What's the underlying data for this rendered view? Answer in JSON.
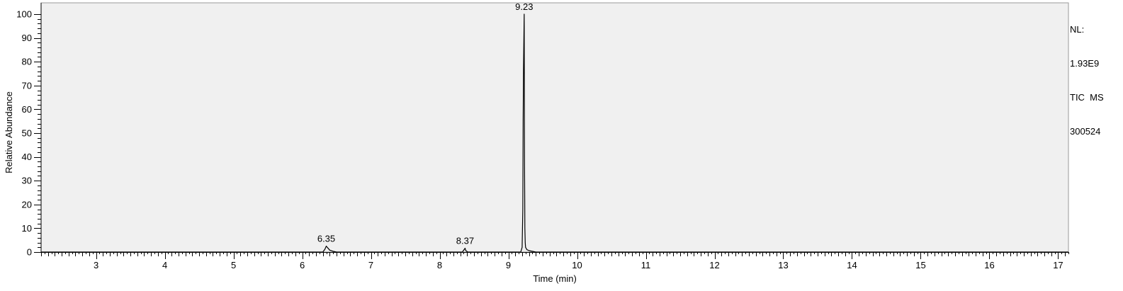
{
  "chart_data": {
    "type": "line",
    "xlabel": "Time (min)",
    "ylabel": "Relative Abundance",
    "xlim": [
      2.2,
      17.15
    ],
    "ylim": [
      0,
      100
    ],
    "x_ticks": [
      3,
      4,
      5,
      6,
      7,
      8,
      9,
      10,
      11,
      12,
      13,
      14,
      15,
      16,
      17
    ],
    "y_ticks": [
      0,
      10,
      20,
      30,
      40,
      50,
      60,
      70,
      80,
      90,
      100
    ],
    "grid": false,
    "plot_background": "#f0f0f0",
    "line_color": "#000000",
    "peaks": [
      {
        "x": 6.35,
        "y": 2.5,
        "label": "6.35"
      },
      {
        "x": 8.37,
        "y": 1.6,
        "label": "8.37"
      },
      {
        "x": 9.23,
        "y": 100,
        "label": "9.23"
      }
    ],
    "series": [
      {
        "x": [
          2.2,
          6.3,
          6.33,
          6.35,
          6.37,
          6.4,
          6.45,
          6.5,
          8.33,
          8.36,
          8.37,
          8.38,
          8.41,
          9.18,
          9.2,
          9.21,
          9.215,
          9.22,
          9.23,
          9.235,
          9.24,
          9.245,
          9.25,
          9.27,
          9.3,
          9.35,
          9.4,
          17.15
        ],
        "y": [
          0,
          0,
          1.2,
          2.5,
          1.8,
          0.8,
          0.3,
          0,
          0,
          1.2,
          1.6,
          0.6,
          0,
          0,
          2,
          18,
          55,
          77,
          100,
          38,
          10,
          4,
          2,
          1,
          0.6,
          0.3,
          0,
          0
        ]
      }
    ]
  },
  "info_panel": {
    "line1": "NL:",
    "line2": "1.93E9",
    "line3": "TIC  MS",
    "line4": "300524"
  }
}
